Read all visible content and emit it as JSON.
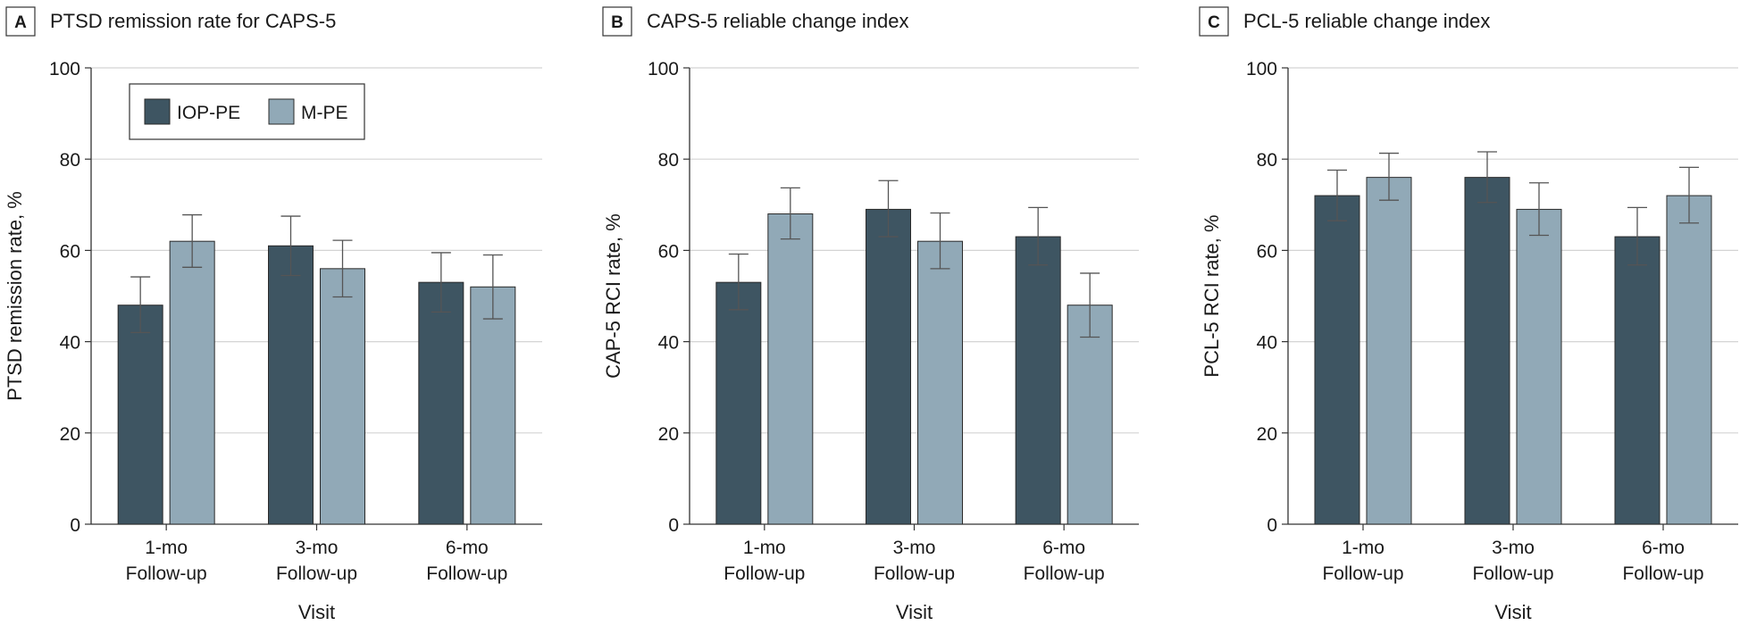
{
  "colors": {
    "iop_pe": "#3e5562",
    "m_pe": "#91a9b7",
    "grid": "#d4d4d4",
    "axis": "#333333",
    "errorbar": "#555555"
  },
  "legend": {
    "items": [
      {
        "label": "IOP-PE",
        "color": "#3e5562"
      },
      {
        "label": "M-PE",
        "color": "#91a9b7"
      }
    ]
  },
  "chart_data": [
    {
      "type": "bar",
      "panel_letter": "A",
      "title": "PTSD remission rate for CAPS-5",
      "xlabel": "Visit",
      "ylabel": "PTSD remission rate, %",
      "ylim": [
        0,
        100
      ],
      "yticks": [
        0,
        20,
        40,
        60,
        80,
        100
      ],
      "categories": [
        [
          "1-mo",
          "Follow-up"
        ],
        [
          "3-mo",
          "Follow-up"
        ],
        [
          "6-mo",
          "Follow-up"
        ]
      ],
      "series": [
        {
          "name": "IOP-PE",
          "values": [
            48,
            61,
            53
          ],
          "err_low": [
            42,
            54.5,
            46.5
          ],
          "err_high": [
            54.2,
            67.5,
            59.5
          ]
        },
        {
          "name": "M-PE",
          "values": [
            62,
            56,
            52
          ],
          "err_low": [
            56.3,
            49.8,
            45
          ],
          "err_high": [
            67.8,
            62.2,
            59
          ]
        }
      ],
      "legend_position": "top-left",
      "grid": true
    },
    {
      "type": "bar",
      "panel_letter": "B",
      "title": "CAPS-5 reliable change index",
      "xlabel": "Visit",
      "ylabel": "CAP-5 RCI rate, %",
      "ylim": [
        0,
        100
      ],
      "yticks": [
        0,
        20,
        40,
        60,
        80,
        100
      ],
      "categories": [
        [
          "1-mo",
          "Follow-up"
        ],
        [
          "3-mo",
          "Follow-up"
        ],
        [
          "6-mo",
          "Follow-up"
        ]
      ],
      "series": [
        {
          "name": "IOP-PE",
          "values": [
            53,
            69,
            63
          ],
          "err_low": [
            47,
            63,
            56.8
          ],
          "err_high": [
            59.2,
            75.3,
            69.4
          ]
        },
        {
          "name": "M-PE",
          "values": [
            68,
            62,
            48
          ],
          "err_low": [
            62.5,
            56,
            41
          ],
          "err_high": [
            73.7,
            68.2,
            55
          ]
        }
      ],
      "grid": true
    },
    {
      "type": "bar",
      "panel_letter": "C",
      "title": "PCL-5 reliable change index",
      "xlabel": "Visit",
      "ylabel": "PCL-5 RCI rate, %",
      "ylim": [
        0,
        100
      ],
      "yticks": [
        0,
        20,
        40,
        60,
        80,
        100
      ],
      "categories": [
        [
          "1-mo",
          "Follow-up"
        ],
        [
          "3-mo",
          "Follow-up"
        ],
        [
          "6-mo",
          "Follow-up"
        ]
      ],
      "series": [
        {
          "name": "IOP-PE",
          "values": [
            72,
            76,
            63
          ],
          "err_low": [
            66.5,
            70.5,
            56.8
          ],
          "err_high": [
            77.6,
            81.6,
            69.4
          ]
        },
        {
          "name": "M-PE",
          "values": [
            76,
            69,
            72
          ],
          "err_low": [
            71,
            63.3,
            66
          ],
          "err_high": [
            81.3,
            74.8,
            78.2
          ]
        }
      ],
      "grid": true
    }
  ]
}
